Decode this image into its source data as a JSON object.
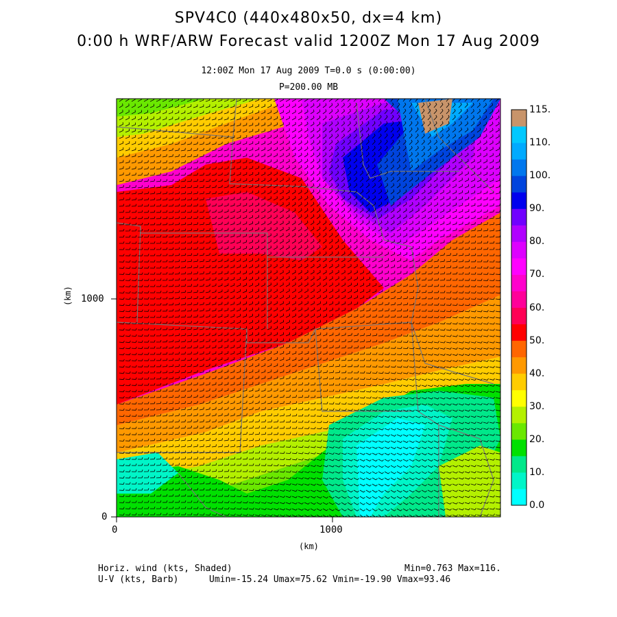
{
  "header": {
    "line1": "SPV4C0 (440x480x50, dx=4 km)",
    "line2": "0:00 h WRF/ARW Forecast valid 1200Z Mon 17 Aug 2009",
    "time_line": "12:00Z Mon 17 Aug 2009     T=0.0 s (0:00:00)",
    "level_line": "P=200.00 MB"
  },
  "axes": {
    "x_ticks": [
      "0",
      "1000"
    ],
    "y_ticks": [
      "0",
      "1000"
    ],
    "x_unit": "(km)",
    "y_unit": "(km)"
  },
  "colorbar": {
    "labels": [
      "115.",
      "110.",
      "100.",
      "90.",
      "80.",
      "70.",
      "60.",
      "50.",
      "40.",
      "30.",
      "20.",
      "10.",
      "0.0"
    ],
    "colors": [
      "#00ffff",
      "#00f5c8",
      "#00e88a",
      "#00e000",
      "#6ae800",
      "#b4f000",
      "#ffff00",
      "#ffcc00",
      "#ff9900",
      "#ff6600",
      "#ff0000",
      "#ff0055",
      "#ff0099",
      "#ff00cc",
      "#ff00ff",
      "#dd00ff",
      "#b000ff",
      "#7000ff",
      "#0000ee",
      "#0044dd",
      "#0077ee",
      "#00aaff",
      "#00c8ff",
      "#c8946a"
    ]
  },
  "footer": {
    "field1": "Horiz. wind (kts, Shaded)",
    "field2": "U-V (kts, Barb)",
    "minmax": "Min=0.763 Max=116.",
    "uvstats": "Umin=-15.24 Umax=75.62 Vmin=-19.90 Vmax=93.46"
  }
}
